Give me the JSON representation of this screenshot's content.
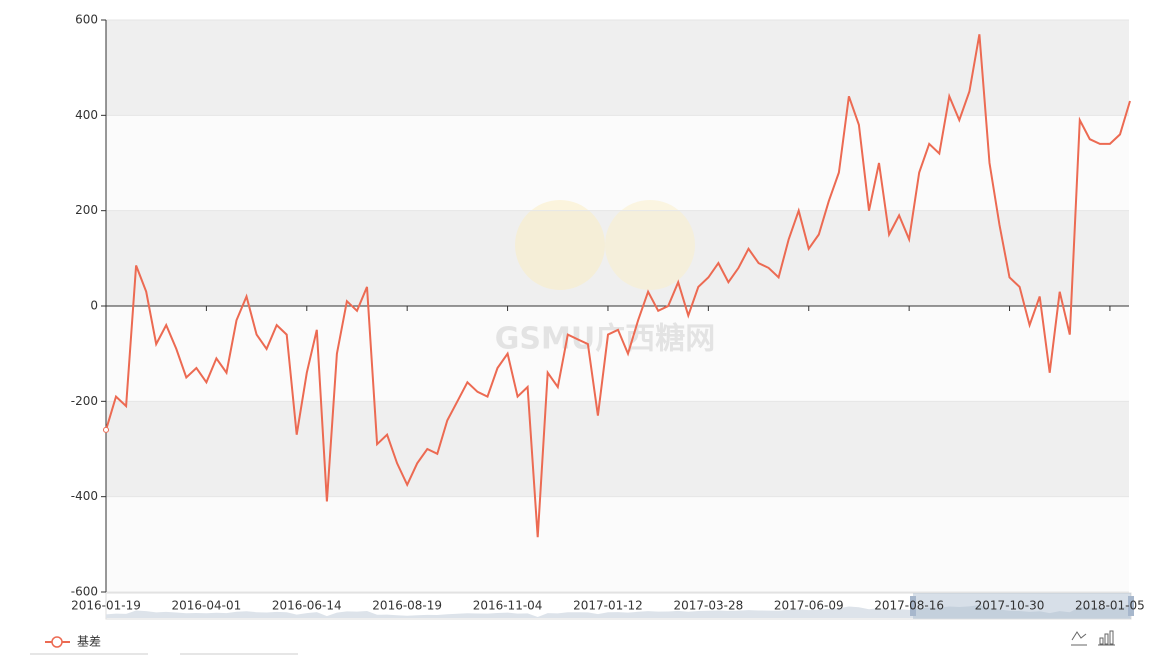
{
  "chart_data": {
    "type": "line",
    "watermark": "GSMU广西糖网",
    "categories": [
      "2016-01-19",
      null,
      null,
      null,
      null,
      null,
      null,
      null,
      null,
      null,
      "2016-04-01",
      null,
      null,
      null,
      null,
      null,
      null,
      null,
      null,
      null,
      "2016-06-14",
      null,
      null,
      null,
      null,
      null,
      null,
      null,
      null,
      null,
      "2016-08-19",
      null,
      null,
      null,
      null,
      null,
      null,
      null,
      null,
      null,
      "2016-11-04",
      null,
      null,
      null,
      null,
      null,
      null,
      null,
      null,
      null,
      "2017-01-12",
      null,
      null,
      null,
      null,
      null,
      null,
      null,
      null,
      null,
      "2017-03-28",
      null,
      null,
      null,
      null,
      null,
      null,
      null,
      null,
      null,
      "2017-06-09",
      null,
      null,
      null,
      null,
      null,
      null,
      null,
      null,
      null,
      "2017-08-16",
      null,
      null,
      null,
      null,
      null,
      null,
      null,
      null,
      null,
      "2017-10-30",
      null,
      null,
      null,
      null,
      null,
      null,
      null,
      null,
      null,
      "2018-01-05",
      null,
      null
    ],
    "series": [
      {
        "name": "基差",
        "color": "#ec6a52",
        "values": [
          -260,
          -190,
          -210,
          85,
          30,
          -80,
          -40,
          -90,
          -150,
          -130,
          -160,
          -110,
          -140,
          -30,
          20,
          -60,
          -90,
          -40,
          -60,
          -270,
          -140,
          -50,
          -410,
          -100,
          10,
          -10,
          40,
          -290,
          -270,
          -330,
          -375,
          -330,
          -300,
          -310,
          -240,
          -200,
          -160,
          -180,
          -190,
          -130,
          -100,
          -190,
          -170,
          -485,
          -140,
          -170,
          -60,
          -70,
          -80,
          -230,
          -60,
          -50,
          -100,
          -30,
          30,
          -10,
          0,
          50,
          -20,
          40,
          60,
          90,
          50,
          80,
          120,
          90,
          80,
          60,
          140,
          200,
          120,
          150,
          220,
          280,
          440,
          380,
          200,
          300,
          150,
          190,
          140,
          280,
          340,
          320,
          440,
          390,
          450,
          570,
          300,
          170,
          60,
          40,
          -40,
          20,
          -140,
          30,
          -60,
          390,
          350,
          340,
          340,
          360,
          430
        ]
      }
    ],
    "ylim": [
      -600,
      600
    ],
    "yticks": [
      -600,
      -400,
      -200,
      0,
      200,
      400,
      600
    ],
    "grid": true,
    "split_area": true
  }
}
